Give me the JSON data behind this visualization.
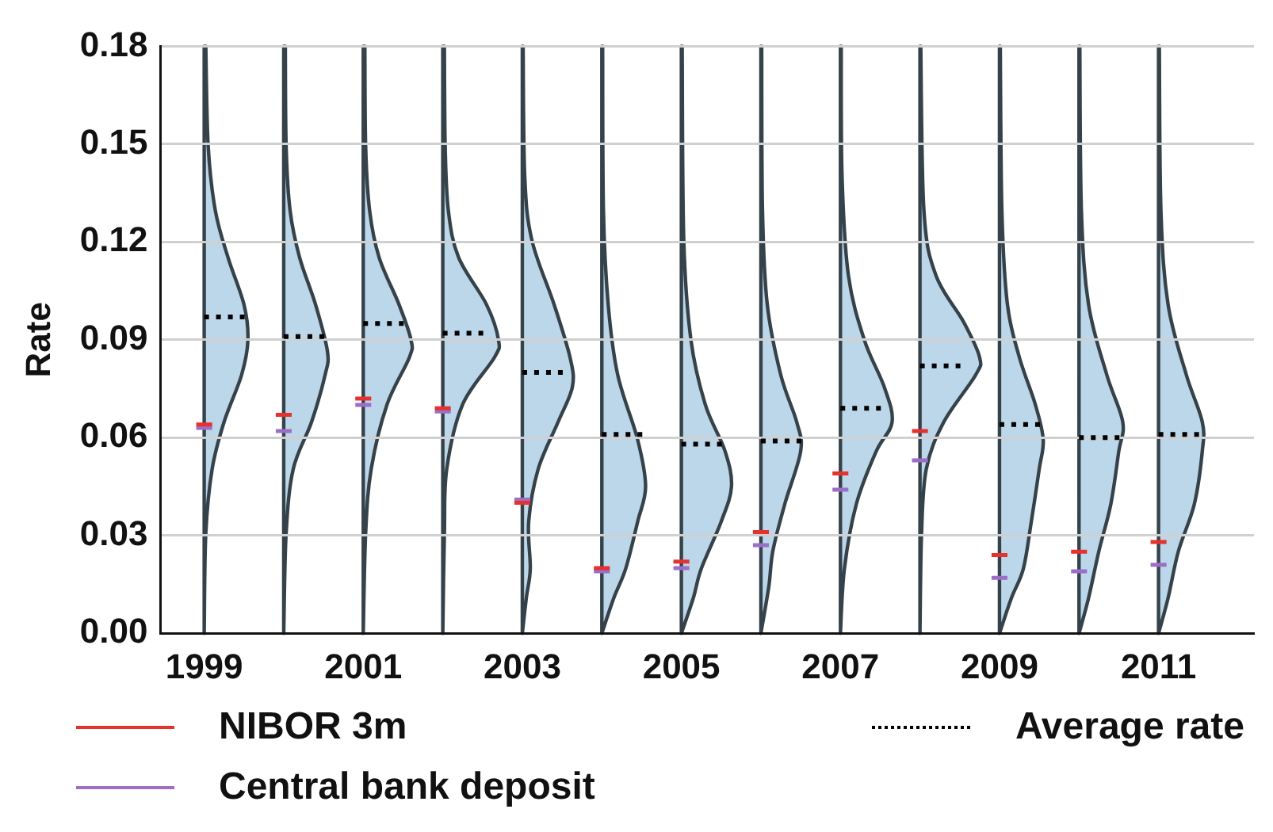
{
  "chart_data": {
    "type": "line",
    "ylabel": "Rate",
    "xlim": [
      1998.45,
      2012.2
    ],
    "xticks": [
      1999,
      2001,
      2003,
      2005,
      2007,
      2009,
      2011
    ],
    "ylim": [
      0,
      0.18
    ],
    "yticks": [
      {
        "value": 0,
        "label": "0.00"
      },
      0.03,
      0.06,
      0.09,
      0.12,
      0.15,
      0.18
    ],
    "grid": "y",
    "legend": "bottom",
    "series": [
      {
        "name": "NIBOR 3m",
        "color": "#e8302c",
        "line_style": "solid",
        "x": [
          1998.9,
          1999.1,
          1999.5,
          1999.9,
          2000.1,
          2000.5,
          2000.9,
          2001.1,
          2001.5,
          2001.9,
          2002.1,
          2002.5,
          2002.9,
          2003.1,
          2003.5,
          2003.9,
          2004.1,
          2004.5,
          2004.9,
          2005.1,
          2005.5,
          2005.9,
          2006.1,
          2006.5,
          2006.9,
          2007.1,
          2007.5,
          2007.9,
          2008.1,
          2008.5,
          2008.9,
          2009.1,
          2009.5,
          2009.9,
          2010.1,
          2010.5,
          2010.9,
          2011.1
        ],
        "values": [
          0.064,
          0.064,
          null,
          0.067,
          0.067,
          null,
          0.072,
          0.072,
          null,
          0.069,
          0.069,
          null,
          0.04,
          0.04,
          null,
          0.02,
          0.02,
          null,
          0.022,
          0.022,
          null,
          0.031,
          0.031,
          null,
          0.049,
          0.049,
          null,
          0.062,
          0.062,
          null,
          0.024,
          0.024,
          null,
          0.025,
          0.025,
          null,
          0.028,
          0.028
        ]
      },
      {
        "name": "Central bank deposit",
        "color": "#9b6fc8",
        "line_style": "solid",
        "x": [
          1998.9,
          1999.1,
          1999.5,
          1999.9,
          2000.1,
          2000.5,
          2000.9,
          2001.1,
          2001.5,
          2001.9,
          2002.1,
          2002.5,
          2002.9,
          2003.1,
          2003.5,
          2003.9,
          2004.1,
          2004.5,
          2004.9,
          2005.1,
          2005.5,
          2005.9,
          2006.1,
          2006.5,
          2006.9,
          2007.1,
          2007.5,
          2007.9,
          2008.1,
          2008.5,
          2008.9,
          2009.1,
          2009.5,
          2009.9,
          2010.1,
          2010.5,
          2010.9,
          2011.1
        ],
        "values": [
          0.063,
          0.063,
          null,
          0.062,
          0.062,
          null,
          0.07,
          0.07,
          null,
          0.068,
          0.068,
          null,
          0.041,
          0.041,
          null,
          0.019,
          0.019,
          null,
          0.02,
          0.02,
          null,
          0.027,
          0.027,
          null,
          0.044,
          0.044,
          null,
          0.053,
          0.053,
          null,
          0.017,
          0.017,
          null,
          0.019,
          0.019,
          null,
          0.021,
          0.021
        ]
      },
      {
        "name": "Average rate",
        "color": "#000000",
        "line_style": "dotted",
        "x": [
          1999,
          1999.55,
          1999.8,
          2000,
          2000.55,
          2000.8,
          2001,
          2001.55,
          2001.8,
          2002,
          2002.55,
          2002.8,
          2003,
          2003.55,
          2003.8,
          2004,
          2004.55,
          2004.8,
          2005,
          2005.55,
          2005.8,
          2006,
          2006.55,
          2006.8,
          2007,
          2007.55,
          2007.8,
          2008,
          2008.55,
          2008.8,
          2009,
          2009.55,
          2009.8,
          2010,
          2010.55,
          2010.8,
          2011,
          2011.55
        ],
        "values": [
          0.097,
          0.097,
          null,
          0.091,
          0.091,
          null,
          0.095,
          0.095,
          null,
          0.092,
          0.092,
          null,
          0.08,
          0.08,
          null,
          0.061,
          0.061,
          null,
          0.058,
          0.058,
          null,
          0.059,
          0.059,
          null,
          0.069,
          0.069,
          null,
          0.082,
          0.082,
          null,
          0.064,
          0.064,
          null,
          0.06,
          0.06,
          null,
          0.061,
          0.061
        ]
      }
    ]
  }
}
